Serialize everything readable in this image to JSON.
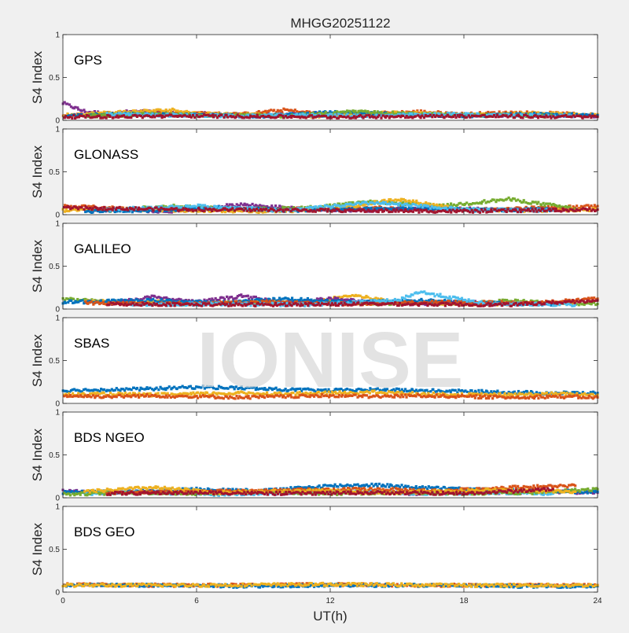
{
  "title": "MHGG20251122",
  "watermark": "IONISE",
  "colors": {
    "figure_bg": "#f0f0f0",
    "axes_bg": "#ffffff",
    "axis_line": "#262626",
    "watermark": "#d9d9d9",
    "series": [
      "#0072BD",
      "#D95319",
      "#EDB120",
      "#7E2F8E",
      "#77AC30",
      "#4DBEEE",
      "#A2142F"
    ]
  },
  "chart_data": [
    {
      "type": "scatter",
      "panel_label": "GPS",
      "ylabel": "S4 Index",
      "xlabel": "",
      "xlim": [
        0,
        24
      ],
      "ylim": [
        0,
        1
      ],
      "yticks": [
        0,
        0.5,
        1
      ],
      "ytick_labels": [
        "0",
        "0.5",
        "1"
      ],
      "xtick_labels_shown": false,
      "grid": false,
      "series": [
        {
          "color": "#7E2F8E",
          "x": [
            0,
            1,
            2,
            3,
            4,
            6,
            8,
            12,
            16,
            20,
            22,
            24
          ],
          "y": [
            0.2,
            0.1,
            0.08,
            0.1,
            0.1,
            0.08,
            0.06,
            0.08,
            0.07,
            0.06,
            0.06,
            0.05
          ]
        },
        {
          "color": "#D95319",
          "x": [
            0,
            2,
            4,
            8,
            10,
            12,
            14,
            16,
            18,
            20,
            22,
            24
          ],
          "y": [
            0.06,
            0.07,
            0.09,
            0.07,
            0.12,
            0.06,
            0.08,
            0.1,
            0.07,
            0.09,
            0.08,
            0.06
          ]
        },
        {
          "color": "#EDB120",
          "x": [
            0,
            3,
            5,
            6,
            9,
            12,
            15,
            18,
            21,
            24
          ],
          "y": [
            0.06,
            0.1,
            0.12,
            0.08,
            0.06,
            0.05,
            0.09,
            0.06,
            0.08,
            0.07
          ]
        },
        {
          "color": "#0072BD",
          "x": [
            0,
            3,
            6,
            9,
            12,
            15,
            18,
            21,
            24
          ],
          "y": [
            0.05,
            0.07,
            0.06,
            0.05,
            0.09,
            0.07,
            0.05,
            0.07,
            0.06
          ]
        },
        {
          "color": "#77AC30",
          "x": [
            1,
            4,
            7,
            10,
            13,
            16,
            19,
            22
          ],
          "y": [
            0.05,
            0.07,
            0.06,
            0.05,
            0.1,
            0.07,
            0.06,
            0.05
          ]
        },
        {
          "color": "#4DBEEE",
          "x": [
            2,
            5,
            8,
            11,
            14,
            17,
            20,
            23
          ],
          "y": [
            0.07,
            0.06,
            0.05,
            0.06,
            0.05,
            0.07,
            0.06,
            0.05
          ]
        },
        {
          "color": "#A2142F",
          "x": [
            0,
            6,
            12,
            18,
            24
          ],
          "y": [
            0.04,
            0.05,
            0.04,
            0.05,
            0.04
          ]
        }
      ]
    },
    {
      "type": "scatter",
      "panel_label": "GLONASS",
      "ylabel": "S4 Index",
      "xlabel": "",
      "xlim": [
        0,
        24
      ],
      "ylim": [
        0,
        1
      ],
      "yticks": [
        0,
        0.5,
        1
      ],
      "ytick_labels": [
        "0",
        "0.5",
        "1"
      ],
      "xtick_labels_shown": false,
      "grid": false,
      "series": [
        {
          "color": "#D95319",
          "x": [
            0,
            2,
            4,
            6,
            8,
            10,
            12,
            14,
            16,
            18,
            20,
            22,
            24
          ],
          "y": [
            0.1,
            0.08,
            0.06,
            0.08,
            0.06,
            0.07,
            0.06,
            0.08,
            0.07,
            0.05,
            0.07,
            0.08,
            0.1
          ]
        },
        {
          "color": "#7E2F8E",
          "x": [
            1,
            3,
            5,
            8,
            11,
            14,
            17,
            20,
            23
          ],
          "y": [
            0.06,
            0.05,
            0.04,
            0.12,
            0.06,
            0.05,
            0.08,
            0.05,
            0.06
          ]
        },
        {
          "color": "#77AC30",
          "x": [
            2,
            5,
            8,
            11,
            14,
            17,
            20,
            23
          ],
          "y": [
            0.05,
            0.1,
            0.06,
            0.08,
            0.15,
            0.1,
            0.18,
            0.07
          ]
        },
        {
          "color": "#EDB120",
          "x": [
            0,
            3,
            6,
            9,
            12,
            15,
            18,
            21,
            24
          ],
          "y": [
            0.05,
            0.06,
            0.05,
            0.04,
            0.06,
            0.18,
            0.06,
            0.05,
            0.06
          ]
        },
        {
          "color": "#0072BD",
          "x": [
            1,
            4,
            7,
            10,
            13,
            16,
            19,
            22
          ],
          "y": [
            0.04,
            0.05,
            0.08,
            0.05,
            0.06,
            0.07,
            0.05,
            0.06
          ]
        },
        {
          "color": "#4DBEEE",
          "x": [
            2,
            6,
            10,
            14,
            18,
            22
          ],
          "y": [
            0.06,
            0.1,
            0.05,
            0.14,
            0.06,
            0.05
          ]
        },
        {
          "color": "#A2142F",
          "x": [
            0,
            6,
            12,
            18,
            24
          ],
          "y": [
            0.08,
            0.06,
            0.05,
            0.04,
            0.06
          ]
        }
      ]
    },
    {
      "type": "scatter",
      "panel_label": "GALILEO",
      "ylabel": "S4 Index",
      "xlabel": "",
      "xlim": [
        0,
        24
      ],
      "ylim": [
        0,
        1
      ],
      "yticks": [
        0,
        0.5,
        1
      ],
      "ytick_labels": [
        "0",
        "0.5",
        "1"
      ],
      "xtick_labels_shown": false,
      "grid": false,
      "series": [
        {
          "color": "#77AC30",
          "x": [
            0,
            2,
            4,
            6,
            8,
            10,
            12,
            14,
            16,
            18,
            20,
            22,
            24
          ],
          "y": [
            0.12,
            0.08,
            0.07,
            0.06,
            0.08,
            0.07,
            0.08,
            0.06,
            0.07,
            0.06,
            0.1,
            0.07,
            0.06
          ]
        },
        {
          "color": "#EDB120",
          "x": [
            1,
            3,
            5,
            7,
            9,
            11,
            13,
            15,
            17,
            19,
            21,
            23
          ],
          "y": [
            0.1,
            0.07,
            0.09,
            0.06,
            0.08,
            0.07,
            0.16,
            0.08,
            0.07,
            0.06,
            0.06,
            0.08
          ]
        },
        {
          "color": "#7E2F8E",
          "x": [
            2,
            4,
            6,
            8,
            10,
            12,
            14,
            16,
            18,
            20,
            22
          ],
          "y": [
            0.06,
            0.14,
            0.08,
            0.15,
            0.07,
            0.12,
            0.08,
            0.06,
            0.09,
            0.05,
            0.07
          ]
        },
        {
          "color": "#0072BD",
          "x": [
            0,
            4,
            7,
            10,
            13,
            16,
            19,
            22
          ],
          "y": [
            0.08,
            0.1,
            0.07,
            0.12,
            0.08,
            0.1,
            0.07,
            0.06
          ]
        },
        {
          "color": "#D95319",
          "x": [
            1,
            5,
            9,
            13,
            17,
            21,
            24
          ],
          "y": [
            0.07,
            0.06,
            0.08,
            0.06,
            0.08,
            0.07,
            0.12
          ]
        },
        {
          "color": "#4DBEEE",
          "x": [
            3,
            7,
            11,
            15,
            16,
            19,
            23
          ],
          "y": [
            0.05,
            0.06,
            0.05,
            0.1,
            0.2,
            0.06,
            0.05
          ]
        },
        {
          "color": "#A2142F",
          "x": [
            2,
            8,
            14,
            20,
            24
          ],
          "y": [
            0.06,
            0.05,
            0.06,
            0.05,
            0.1
          ]
        }
      ]
    },
    {
      "type": "scatter",
      "panel_label": "SBAS",
      "ylabel": "S4 Index",
      "xlabel": "",
      "xlim": [
        0,
        24
      ],
      "ylim": [
        0,
        1
      ],
      "yticks": [
        0,
        0.5,
        1
      ],
      "ytick_labels": [
        "0",
        "0.5",
        "1"
      ],
      "xtick_labels_shown": false,
      "grid": false,
      "series": [
        {
          "color": "#0072BD",
          "x": [
            0,
            2,
            4,
            6,
            8,
            10,
            12,
            14,
            16,
            18,
            20,
            22,
            24
          ],
          "y": [
            0.15,
            0.16,
            0.17,
            0.19,
            0.18,
            0.16,
            0.15,
            0.16,
            0.15,
            0.14,
            0.13,
            0.12,
            0.12
          ]
        },
        {
          "color": "#EDB120",
          "x": [
            0,
            2,
            4,
            6,
            8,
            10,
            12,
            14,
            16,
            18,
            20,
            22,
            24
          ],
          "y": [
            0.1,
            0.11,
            0.1,
            0.11,
            0.12,
            0.11,
            0.12,
            0.13,
            0.11,
            0.1,
            0.1,
            0.11,
            0.1
          ]
        },
        {
          "color": "#D95319",
          "x": [
            0,
            2,
            4,
            6,
            8,
            10,
            12,
            14,
            16,
            18,
            20,
            22,
            24
          ],
          "y": [
            0.09,
            0.08,
            0.09,
            0.08,
            0.07,
            0.08,
            0.09,
            0.08,
            0.09,
            0.08,
            0.07,
            0.08,
            0.07
          ]
        }
      ]
    },
    {
      "type": "scatter",
      "panel_label": "BDS NGEO",
      "ylabel": "S4 Index",
      "xlabel": "",
      "xlim": [
        0,
        24
      ],
      "ylim": [
        0,
        1
      ],
      "yticks": [
        0,
        0.5,
        1
      ],
      "ytick_labels": [
        "0",
        "0.5",
        "1"
      ],
      "xtick_labels_shown": false,
      "grid": false,
      "series": [
        {
          "color": "#7E2F8E",
          "x": [
            0,
            2,
            4,
            6,
            8,
            10,
            12,
            14,
            16,
            18,
            20,
            22,
            24
          ],
          "y": [
            0.08,
            0.06,
            0.07,
            0.08,
            0.06,
            0.05,
            0.07,
            0.06,
            0.05,
            0.07,
            0.06,
            0.07,
            0.06
          ]
        },
        {
          "color": "#0072BD",
          "x": [
            0,
            3,
            6,
            9,
            12,
            14,
            16,
            18,
            21,
            24
          ],
          "y": [
            0.06,
            0.07,
            0.1,
            0.08,
            0.14,
            0.15,
            0.12,
            0.1,
            0.08,
            0.07
          ]
        },
        {
          "color": "#4DBEEE",
          "x": [
            1,
            4,
            7,
            10,
            13,
            16,
            19,
            22
          ],
          "y": [
            0.05,
            0.06,
            0.04,
            0.06,
            0.08,
            0.05,
            0.06,
            0.05
          ]
        },
        {
          "color": "#77AC30",
          "x": [
            0,
            3,
            6,
            9,
            12,
            15,
            18,
            21,
            24
          ],
          "y": [
            0.04,
            0.06,
            0.05,
            0.07,
            0.05,
            0.06,
            0.05,
            0.06,
            0.1
          ]
        },
        {
          "color": "#D95319",
          "x": [
            2,
            5,
            8,
            11,
            14,
            17,
            20,
            23
          ],
          "y": [
            0.06,
            0.07,
            0.08,
            0.09,
            0.1,
            0.08,
            0.12,
            0.14
          ]
        },
        {
          "color": "#EDB120",
          "x": [
            1,
            4,
            7,
            11,
            15,
            19,
            23
          ],
          "y": [
            0.07,
            0.12,
            0.06,
            0.08,
            0.06,
            0.09,
            0.07
          ]
        },
        {
          "color": "#A2142F",
          "x": [
            2,
            6,
            10,
            14,
            18,
            22
          ],
          "y": [
            0.05,
            0.06,
            0.05,
            0.06,
            0.05,
            0.1
          ]
        }
      ]
    },
    {
      "type": "scatter",
      "panel_label": "BDS GEO",
      "ylabel": "S4 Index",
      "xlabel": "UT(h)",
      "xlim": [
        0,
        24
      ],
      "ylim": [
        0,
        1
      ],
      "yticks": [
        0,
        0.5,
        1
      ],
      "ytick_labels": [
        "0",
        "0.5",
        "1"
      ],
      "xticks": [
        0,
        6,
        12,
        18,
        24
      ],
      "xtick_labels": [
        "0",
        "6",
        "12",
        "18",
        "24"
      ],
      "xtick_labels_shown": true,
      "grid": false,
      "series": [
        {
          "color": "#D95319",
          "x": [
            0,
            4,
            8,
            12,
            16,
            20,
            24
          ],
          "y": [
            0.09,
            0.08,
            0.08,
            0.09,
            0.08,
            0.08,
            0.08
          ]
        },
        {
          "color": "#0072BD",
          "x": [
            0,
            4,
            8,
            12,
            16,
            20,
            24
          ],
          "y": [
            0.08,
            0.08,
            0.07,
            0.08,
            0.08,
            0.07,
            0.07
          ]
        },
        {
          "color": "#EDB120",
          "x": [
            0,
            6,
            12,
            18,
            24
          ],
          "y": [
            0.08,
            0.08,
            0.09,
            0.08,
            0.08
          ]
        }
      ]
    }
  ]
}
